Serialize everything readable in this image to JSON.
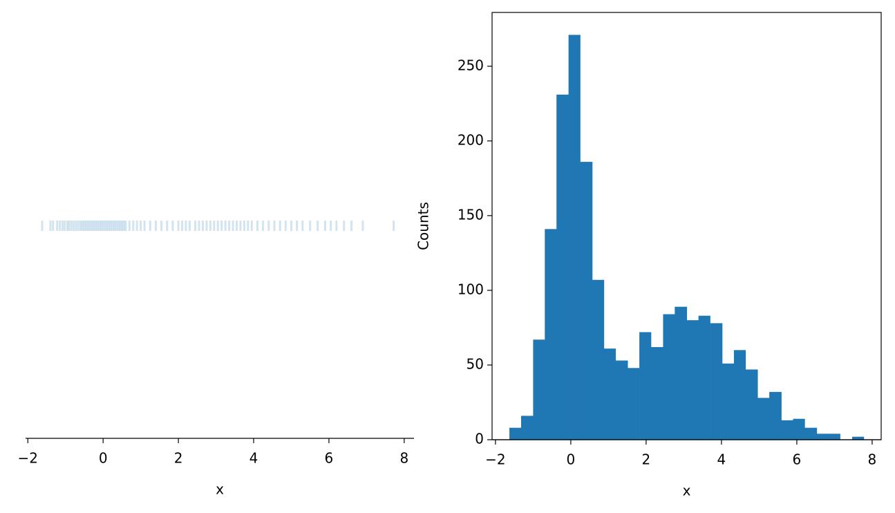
{
  "chart_data": [
    {
      "type": "strip",
      "xlabel": "x",
      "color": "#1f77b4",
      "alpha": 0.2,
      "x": [
        -1.62,
        -1.4,
        -1.33,
        -1.22,
        -1.15,
        -1.08,
        -1.02,
        -0.95,
        -0.9,
        -0.84,
        -0.78,
        -0.72,
        -0.66,
        -0.6,
        -0.55,
        -0.5,
        -0.45,
        -0.4,
        -0.35,
        -0.3,
        -0.25,
        -0.2,
        -0.15,
        -0.1,
        -0.05,
        0.0,
        0.05,
        0.1,
        0.15,
        0.2,
        0.25,
        0.3,
        0.35,
        0.4,
        0.45,
        0.5,
        0.55,
        0.6,
        0.7,
        0.8,
        0.9,
        1.0,
        1.1,
        1.25,
        1.4,
        1.55,
        1.7,
        1.85,
        2.0,
        2.1,
        2.2,
        2.3,
        2.45,
        2.55,
        2.65,
        2.75,
        2.85,
        2.95,
        3.05,
        3.15,
        3.25,
        3.35,
        3.45,
        3.55,
        3.65,
        3.75,
        3.85,
        3.95,
        4.1,
        4.25,
        4.4,
        4.55,
        4.7,
        4.85,
        5.0,
        5.15,
        5.3,
        5.5,
        5.7,
        5.9,
        6.05,
        6.2,
        6.4,
        6.6,
        6.9,
        7.72
      ],
      "xlim": [
        -2.06,
        8.26
      ],
      "xticks": [
        {
          "value": -2,
          "label": "−2"
        },
        0,
        2,
        4,
        6,
        8
      ]
    },
    {
      "type": "histogram",
      "xlabel": "x",
      "ylabel": "Counts",
      "color": "#1f77b4",
      "bins": [
        -1.63,
        -1.32,
        -1.0,
        -0.69,
        -0.38,
        -0.06,
        0.25,
        0.57,
        0.88,
        1.19,
        1.51,
        1.82,
        2.13,
        2.45,
        2.76,
        3.08,
        3.39,
        3.7,
        4.02,
        4.33,
        4.64,
        4.96,
        5.27,
        5.59,
        5.9,
        6.21,
        6.53,
        6.84,
        7.15,
        7.47,
        7.78
      ],
      "counts": [
        8,
        16,
        67,
        141,
        231,
        271,
        186,
        107,
        61,
        53,
        48,
        72,
        62,
        84,
        89,
        80,
        83,
        78,
        51,
        60,
        47,
        28,
        32,
        13,
        14,
        8,
        4,
        4,
        0,
        2
      ],
      "xlim": [
        -2.09,
        8.24
      ],
      "ylim": [
        0,
        286
      ],
      "xticks": [
        {
          "value": -2,
          "label": "−2"
        },
        0,
        2,
        4,
        6,
        8
      ],
      "yticks": [
        0,
        50,
        100,
        150,
        200,
        250
      ]
    }
  ]
}
